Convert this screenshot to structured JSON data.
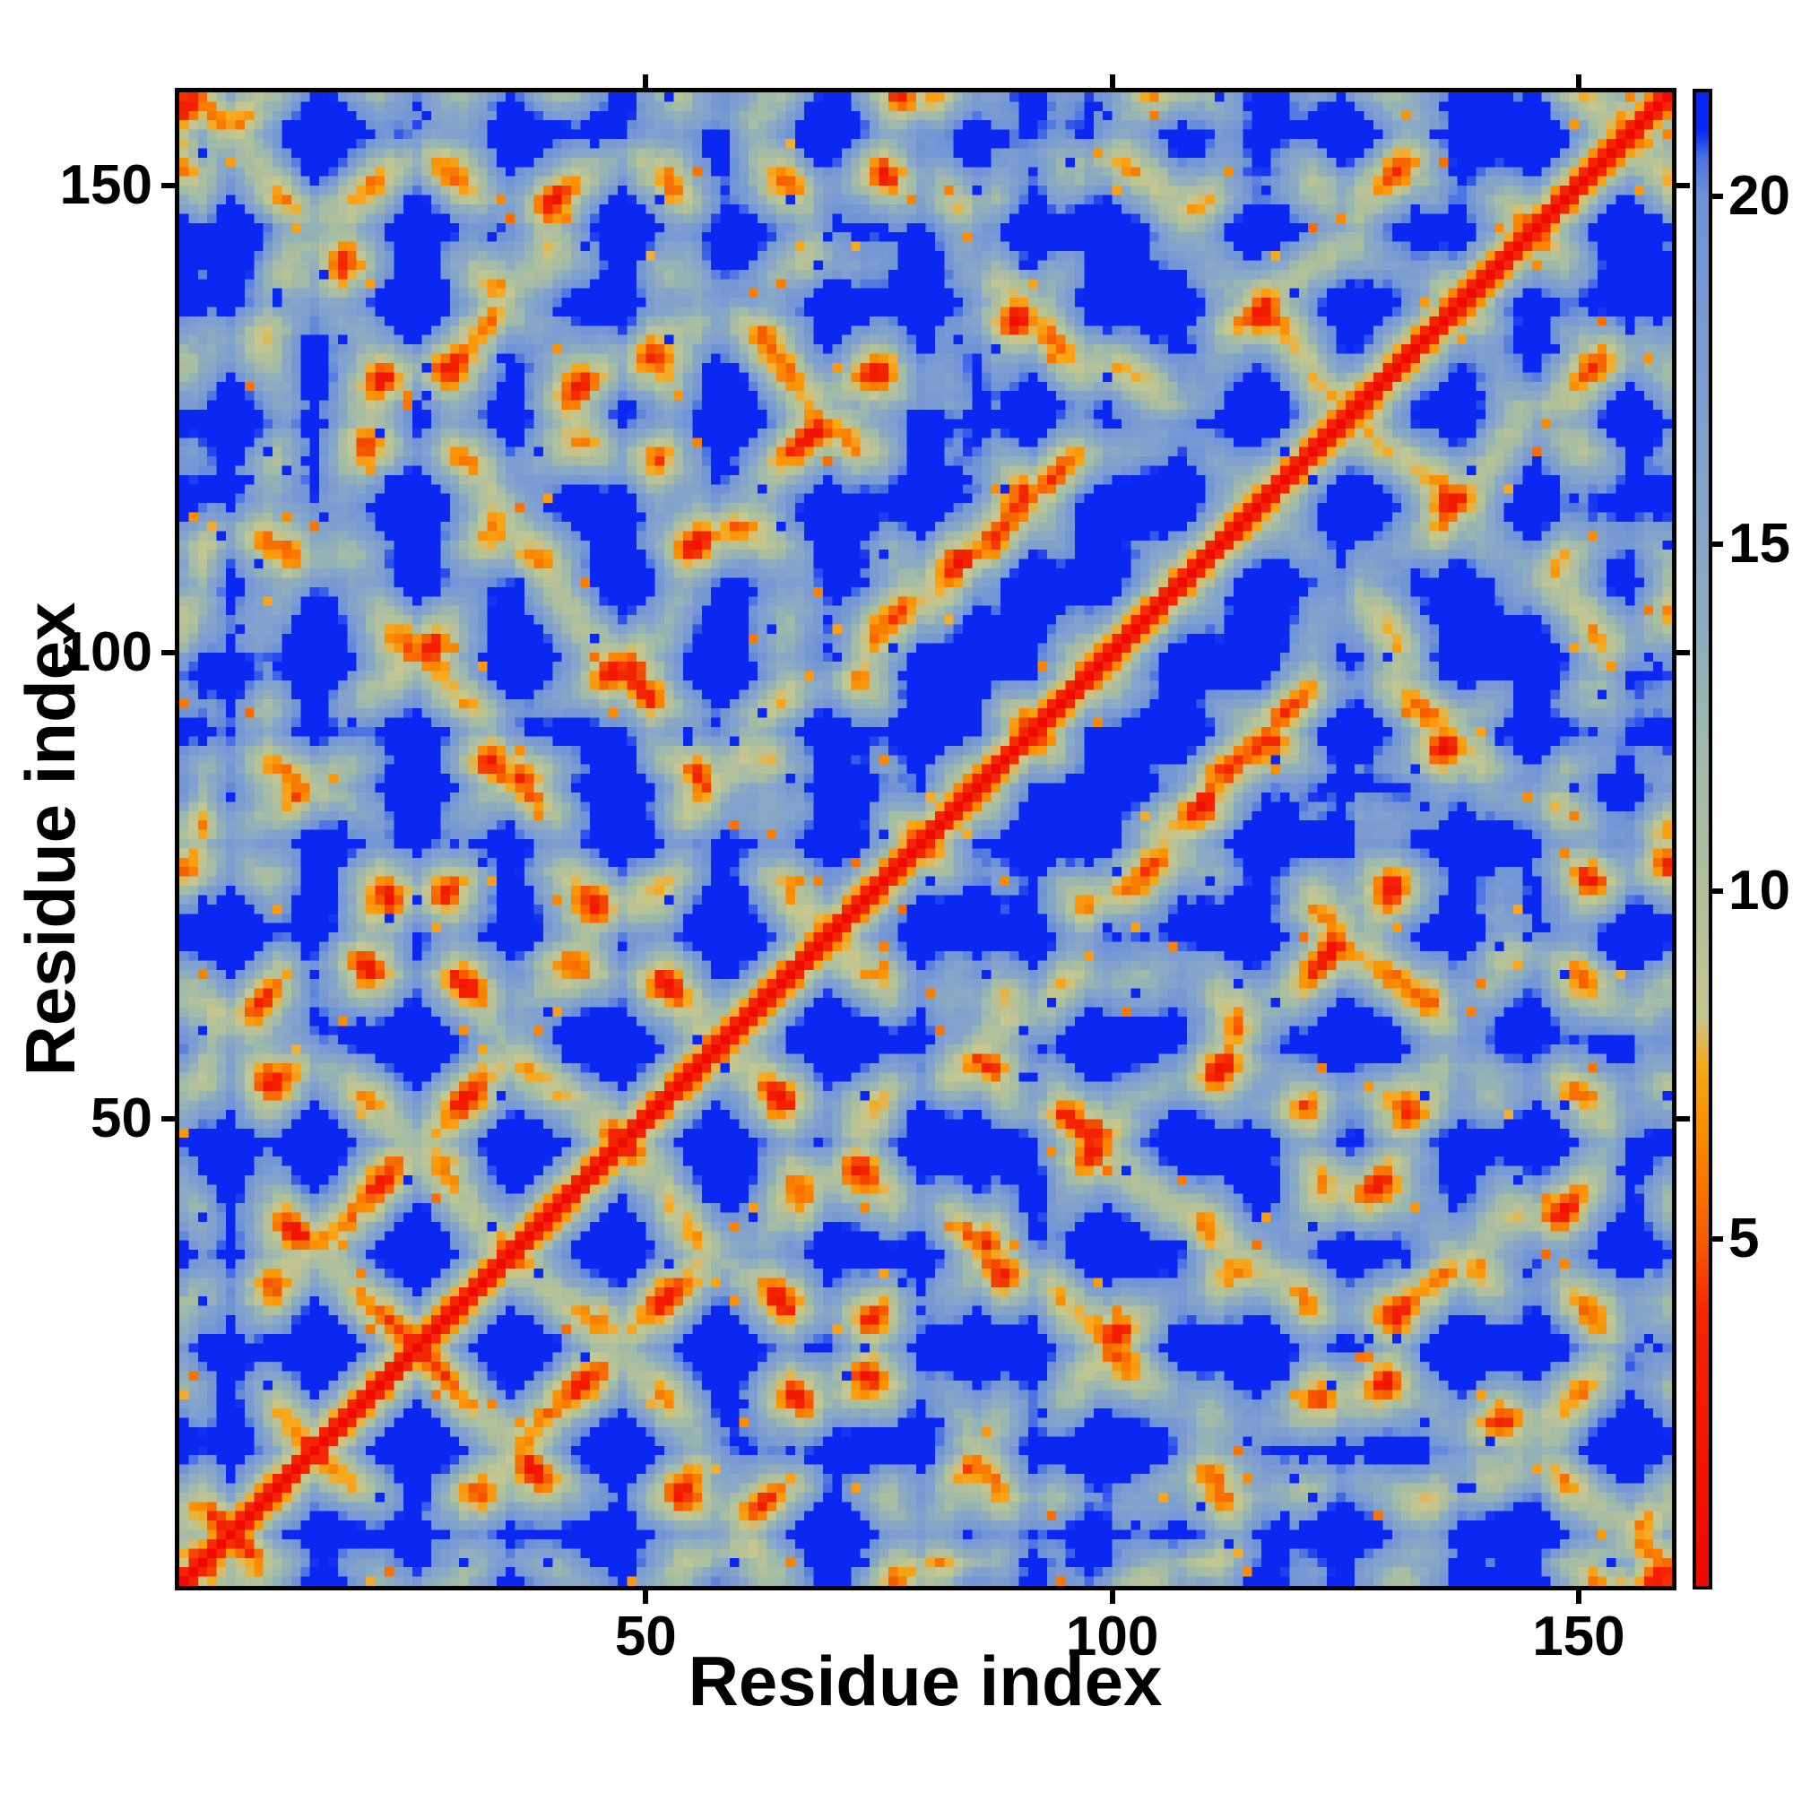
{
  "chart_data": {
    "type": "heatmap",
    "title": "",
    "xlabel": "Residue index",
    "ylabel": "Residue index",
    "x_range": [
      0,
      160
    ],
    "y_range": [
      0,
      160
    ],
    "x_tick_values": [
      50,
      100,
      150
    ],
    "x_tick_labels": [
      "50",
      "100",
      "150"
    ],
    "y_tick_values": [
      50,
      100,
      150
    ],
    "y_tick_labels": [
      "50",
      "100",
      "150"
    ],
    "grid": false,
    "values_description": "Symmetric 160x160 pairwise C-alpha distance matrix (Angstrom), 0 on the diagonal, capped at vmax; rendered bottom-left origin",
    "colorbar": {
      "position": "right",
      "vmin": 0,
      "vmax": 21.5,
      "tick_values": [
        5,
        10,
        15,
        20
      ],
      "tick_labels": [
        "5",
        "10",
        "15",
        "20"
      ]
    },
    "colormap_stops": [
      [
        0.0,
        "#ee0902"
      ],
      [
        3.9,
        "#f42600"
      ],
      [
        5.0,
        "#f65e00"
      ],
      [
        6.6,
        "#fb8e00"
      ],
      [
        7.5,
        "#f8a81c"
      ],
      [
        8.2,
        "#c6c78e"
      ],
      [
        9.6,
        "#b4c19a"
      ],
      [
        12.0,
        "#a0baa9"
      ],
      [
        14.0,
        "#8cabc2"
      ],
      [
        17.0,
        "#7f9fd0"
      ],
      [
        20.0,
        "#7093d6"
      ],
      [
        20.55,
        "#4c74e4"
      ],
      [
        20.95,
        "#0a28f2"
      ],
      [
        21.5,
        "#0a28f2"
      ]
    ],
    "background_value_color": "#0a28f2",
    "diagonal_value": 0,
    "matrix_model": {
      "description": "Compact folded-chain model reproducing the depicted distance map: near-diagonal red/orange band, sage/steel contact blobs, sparse long-range contacts, speckle noise",
      "n_residues": 160,
      "bond_length": 3.8,
      "confine_radius": 17,
      "persistence": 1.15,
      "noise": 0.55,
      "turn_prob": 0.05,
      "turn_strength": 1.7,
      "pull": 1.1,
      "seed": 29,
      "cap": 21.5,
      "jitter": 1.7,
      "speckle_high_prob": 0.012,
      "speckle_low_prob": 0.013,
      "speckle_low_value": [
        5.5,
        7.7
      ]
    }
  }
}
